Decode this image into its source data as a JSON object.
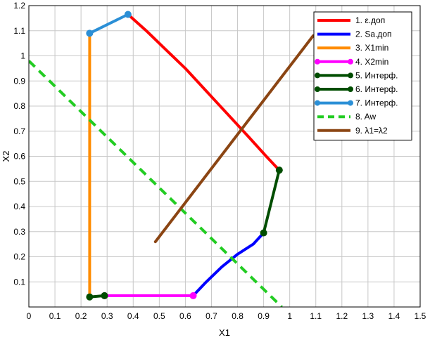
{
  "chart_data": {
    "type": "line",
    "xlabel": "X1",
    "ylabel": "X2",
    "xlim": [
      0,
      1.5
    ],
    "ylim": [
      0,
      1.2
    ],
    "x_ticks": [
      "0",
      "0.1",
      "0.2",
      "0.3",
      "0.4",
      "0.5",
      "0.6",
      "0.7",
      "0.8",
      "0.9",
      "1",
      "1.1",
      "1.2",
      "1.3",
      "1.4",
      "1.5"
    ],
    "y_ticks": [
      "0.1",
      "0.2",
      "0.3",
      "0.4",
      "0.5",
      "0.6",
      "0.7",
      "0.8",
      "0.9",
      "1",
      "1.1",
      "1.2"
    ],
    "legend_position": "top-right",
    "series": [
      {
        "name": "1. ε.доп",
        "color": "#ff0000",
        "style": "solid",
        "markers": false,
        "points": [
          [
            0.38,
            1.165
          ],
          [
            0.45,
            1.1
          ],
          [
            0.52,
            1.03
          ],
          [
            0.6,
            0.95
          ],
          [
            0.68,
            0.86
          ],
          [
            0.76,
            0.77
          ],
          [
            0.84,
            0.68
          ],
          [
            0.91,
            0.6
          ],
          [
            0.96,
            0.545
          ]
        ]
      },
      {
        "name": "2. Sa.доп",
        "color": "#0000ff",
        "style": "solid",
        "markers": false,
        "points": [
          [
            0.63,
            0.045
          ],
          [
            0.68,
            0.1
          ],
          [
            0.74,
            0.16
          ],
          [
            0.8,
            0.21
          ],
          [
            0.86,
            0.25
          ],
          [
            0.9,
            0.295
          ]
        ]
      },
      {
        "name": "3. X1min",
        "color": "#ff8c00",
        "style": "solid",
        "markers": false,
        "points": [
          [
            0.233,
            0.04
          ],
          [
            0.233,
            1.09
          ]
        ]
      },
      {
        "name": "4. X2min",
        "color": "#ff00ff",
        "style": "solid",
        "markers": true,
        "points": [
          [
            0.29,
            0.045
          ],
          [
            0.63,
            0.045
          ]
        ]
      },
      {
        "name": "5. Интерф.",
        "color": "#004d00",
        "style": "solid",
        "markers": true,
        "points": [
          [
            0.233,
            0.04
          ],
          [
            0.29,
            0.045
          ]
        ]
      },
      {
        "name": "6. Интерф.",
        "color": "#004d00",
        "style": "solid",
        "markers": true,
        "points": [
          [
            0.9,
            0.295
          ],
          [
            0.96,
            0.545
          ]
        ]
      },
      {
        "name": "7. Интерф.",
        "color": "#2b8fd6",
        "style": "solid",
        "markers": true,
        "points": [
          [
            0.233,
            1.09
          ],
          [
            0.38,
            1.165
          ]
        ]
      },
      {
        "name": "8. Aw",
        "color": "#22cc22",
        "style": "dashed",
        "markers": false,
        "points": [
          [
            0,
            0.98
          ],
          [
            0.97,
            0.0
          ]
        ]
      },
      {
        "name": "9. λ1=λ2",
        "color": "#8b4513",
        "style": "solid",
        "markers": false,
        "points": [
          [
            0.485,
            0.26
          ],
          [
            1.09,
            1.08
          ]
        ]
      }
    ]
  }
}
